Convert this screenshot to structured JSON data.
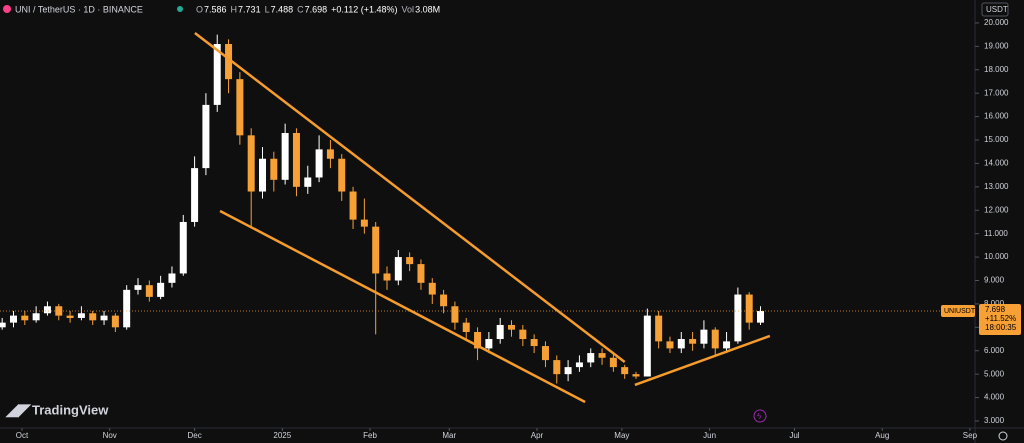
{
  "header": {
    "symbol": "UNI / TetherUS · 1D · BINANCE",
    "quote": [
      {
        "k": "O",
        "v": "7.586"
      },
      {
        "k": "H",
        "v": "7.731"
      },
      {
        "k": "L",
        "v": "7.488"
      },
      {
        "k": "C",
        "v": "7.698"
      }
    ],
    "change": "+0.112 (+1.48%)",
    "vol_label": "Vol",
    "vol": "3.08M"
  },
  "currency": "USDT",
  "brand": "TradingView",
  "price_label": {
    "symbol": "UNIUSDT",
    "price": "7.698",
    "change": "+11.52%",
    "countdown": "18:00:35"
  },
  "chart_data": {
    "type": "candlestick",
    "up_color": "#ffffff",
    "down_color": "#f7a035",
    "trend_color": "#f59c2c",
    "grid": false,
    "xlim": [
      -7.77,
      336.8
    ],
    "ylim": [
      2.7,
      20.98
    ],
    "xticks": [
      {
        "value": 0,
        "label": "Oct"
      },
      {
        "value": 31,
        "label": "Nov"
      },
      {
        "value": 61,
        "label": "Dec"
      },
      {
        "value": 92,
        "label": "2025"
      },
      {
        "value": 123,
        "label": "Feb"
      },
      {
        "value": 151,
        "label": "Mar"
      },
      {
        "value": 182,
        "label": "Apr"
      },
      {
        "value": 212,
        "label": "May"
      },
      {
        "value": 243,
        "label": "Jun"
      },
      {
        "value": 273,
        "label": "Jul"
      },
      {
        "value": 304,
        "label": "Aug"
      },
      {
        "value": 335,
        "label": "Sep"
      }
    ],
    "yticks": [
      {
        "value": 3,
        "label": "3.000"
      },
      {
        "value": 4,
        "label": "4.000"
      },
      {
        "value": 5,
        "label": "5.000"
      },
      {
        "value": 6,
        "label": "6.000"
      },
      {
        "value": 7,
        "label": "7.000"
      },
      {
        "value": 8,
        "label": "8.000"
      },
      {
        "value": 9,
        "label": "9.000"
      },
      {
        "value": 10,
        "label": "10.000"
      },
      {
        "value": 11,
        "label": "11.000"
      },
      {
        "value": 12,
        "label": "12.000"
      },
      {
        "value": 13,
        "label": "13.000"
      },
      {
        "value": 14,
        "label": "14.000"
      },
      {
        "value": 15,
        "label": "15.000"
      },
      {
        "value": 16,
        "label": "16.000"
      },
      {
        "value": 17,
        "label": "17.000"
      },
      {
        "value": 18,
        "label": "18.000"
      },
      {
        "value": 19,
        "label": "19.000"
      },
      {
        "value": 20,
        "label": "20.000"
      }
    ],
    "last_price": 7.698,
    "x": [
      -7,
      -3,
      1,
      5,
      9,
      13,
      17,
      21,
      25,
      29,
      33,
      37,
      41,
      45,
      49,
      53,
      57,
      61,
      65,
      69,
      73,
      77,
      81,
      85,
      89,
      93,
      97,
      101,
      105,
      109,
      113,
      117,
      121,
      125,
      129,
      133,
      137,
      141,
      145,
      149,
      153,
      157,
      161,
      165,
      169,
      173,
      177,
      181,
      185,
      189,
      193,
      197,
      201,
      205,
      209,
      213,
      217,
      221,
      225,
      229,
      233,
      237,
      241,
      245,
      249,
      253,
      257,
      261
    ],
    "open": [
      7.0,
      7.2,
      7.5,
      7.3,
      7.6,
      7.9,
      7.5,
      7.4,
      7.6,
      7.3,
      7.5,
      7.0,
      8.6,
      8.8,
      8.3,
      8.9,
      9.3,
      11.5,
      13.8,
      16.5,
      19.1,
      17.6,
      15.2,
      12.8,
      14.2,
      13.3,
      15.3,
      13.0,
      13.4,
      14.6,
      14.2,
      12.8,
      11.6,
      11.3,
      9.3,
      9.0,
      10.0,
      9.7,
      8.9,
      8.4,
      7.9,
      7.2,
      6.8,
      6.1,
      6.5,
      7.1,
      6.9,
      6.5,
      6.2,
      5.6,
      5.0,
      5.3,
      5.5,
      5.9,
      5.7,
      5.3,
      5.0,
      4.9,
      7.5,
      6.4,
      6.1,
      6.5,
      6.3,
      6.9,
      6.1,
      6.4,
      8.4,
      7.2
    ],
    "high": [
      7.4,
      7.7,
      7.7,
      7.9,
      8.1,
      8.0,
      7.7,
      7.9,
      7.7,
      7.7,
      7.6,
      8.8,
      9.1,
      9.0,
      9.2,
      9.6,
      11.8,
      14.3,
      17.0,
      19.5,
      19.3,
      17.9,
      15.5,
      14.7,
      14.5,
      15.7,
      15.5,
      13.9,
      15.2,
      15.0,
      14.4,
      13.0,
      12.5,
      11.5,
      9.6,
      10.3,
      10.2,
      9.9,
      9.1,
      8.6,
      8.1,
      7.4,
      7.0,
      6.8,
      7.4,
      7.3,
      7.1,
      6.7,
      6.4,
      5.8,
      5.6,
      5.8,
      6.1,
      6.1,
      5.9,
      5.4,
      5.1,
      7.8,
      7.7,
      6.6,
      6.8,
      6.8,
      7.3,
      7.0,
      6.8,
      8.7,
      8.5,
      7.9
    ],
    "low": [
      6.9,
      7.0,
      7.1,
      7.2,
      7.5,
      7.3,
      7.2,
      7.3,
      7.1,
      7.1,
      6.8,
      6.9,
      8.4,
      8.1,
      8.2,
      8.7,
      9.2,
      11.3,
      13.5,
      16.2,
      17.0,
      14.8,
      11.3,
      12.5,
      12.8,
      13.1,
      12.6,
      12.7,
      13.2,
      13.8,
      12.4,
      11.2,
      11.0,
      6.7,
      8.6,
      8.8,
      9.4,
      8.6,
      8.0,
      7.6,
      6.9,
      6.5,
      5.6,
      5.9,
      6.3,
      6.6,
      6.2,
      5.9,
      5.3,
      4.6,
      4.7,
      5.1,
      5.3,
      5.4,
      5.1,
      4.8,
      4.8,
      4.9,
      6.1,
      5.9,
      5.9,
      6.0,
      6.1,
      5.8,
      5.9,
      6.3,
      6.9,
      7.1
    ],
    "close": [
      7.2,
      7.5,
      7.3,
      7.6,
      7.9,
      7.5,
      7.4,
      7.6,
      7.3,
      7.5,
      7.0,
      8.6,
      8.8,
      8.3,
      8.9,
      9.3,
      11.5,
      13.8,
      16.5,
      19.1,
      17.6,
      15.2,
      12.8,
      14.2,
      13.3,
      15.3,
      13.0,
      13.4,
      14.6,
      14.2,
      12.8,
      11.6,
      11.3,
      9.3,
      9.0,
      10.0,
      9.7,
      8.9,
      8.4,
      7.9,
      7.2,
      6.8,
      6.1,
      6.5,
      7.1,
      6.9,
      6.5,
      6.2,
      5.6,
      5.0,
      5.3,
      5.5,
      5.9,
      5.7,
      5.3,
      5.0,
      4.9,
      7.5,
      6.4,
      6.1,
      6.5,
      6.3,
      6.9,
      6.1,
      6.4,
      8.4,
      7.2,
      7.698
    ],
    "trendlines": [
      {
        "x": [
          61.1,
          213
        ],
        "y": [
          19.57,
          5.52
        ]
      },
      {
        "x": [
          70,
          199
        ],
        "y": [
          11.97,
          3.81
        ]
      },
      {
        "x": [
          216.6,
          264.3
        ],
        "y": [
          4.54,
          6.63
        ]
      }
    ]
  }
}
